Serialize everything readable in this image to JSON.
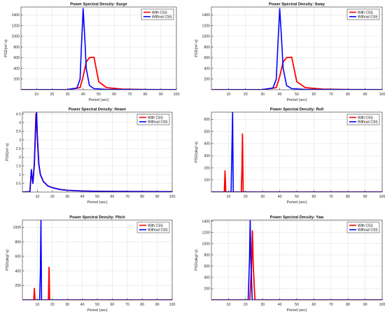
{
  "chart_data": [
    {
      "type": "line",
      "title": "Power Spectral Density: Surge",
      "xlabel": "Period (sec)",
      "ylabel": "PSD(m²·s)",
      "xlim": [
        0,
        100
      ],
      "ylim": [
        0,
        1550
      ],
      "xticks": [
        10,
        20,
        30,
        40,
        50,
        60,
        70,
        80,
        90,
        100
      ],
      "yticks": [
        200,
        400,
        600,
        800,
        1000,
        1200,
        1400
      ],
      "ytick_labels": [
        "200",
        "400",
        "600",
        "800",
        "1000",
        "1200",
        "1400"
      ],
      "grid": true,
      "legend": "top-right",
      "series": [
        {
          "name": "With CSS",
          "color": "#ff0000",
          "x": [
            0,
            30,
            38,
            40,
            42,
            44,
            47,
            50,
            55,
            65,
            80,
            100
          ],
          "y": [
            0,
            2,
            40,
            250,
            520,
            600,
            610,
            150,
            40,
            10,
            3,
            1
          ]
        },
        {
          "name": "Without CSS",
          "color": "#0000ff",
          "x": [
            0,
            30,
            36,
            38,
            39,
            40,
            41,
            42,
            44,
            47,
            55,
            100
          ],
          "y": [
            0,
            2,
            30,
            200,
            900,
            1520,
            1000,
            400,
            80,
            20,
            5,
            1
          ]
        }
      ]
    },
    {
      "type": "line",
      "title": "Power Spectral Density: Sway",
      "xlabel": "Period (sec)",
      "ylabel": "PSD(m²·s)",
      "xlim": [
        0,
        100
      ],
      "ylim": [
        0,
        1550
      ],
      "xticks": [
        10,
        20,
        30,
        40,
        50,
        60,
        70,
        80,
        90,
        100
      ],
      "yticks": [
        200,
        400,
        600,
        800,
        1000,
        1200,
        1400
      ],
      "ytick_labels": [
        "200",
        "400",
        "600",
        "800",
        "1000",
        "1200",
        "1400"
      ],
      "grid": true,
      "legend": "top-right",
      "series": [
        {
          "name": "With CSS",
          "color": "#ff0000",
          "x": [
            0,
            30,
            38,
            40,
            42,
            44,
            47,
            50,
            55,
            65,
            80,
            100
          ],
          "y": [
            0,
            2,
            40,
            250,
            520,
            600,
            610,
            150,
            40,
            10,
            3,
            1
          ]
        },
        {
          "name": "Without CSS",
          "color": "#0000ff",
          "x": [
            0,
            30,
            36,
            38,
            39,
            40,
            41,
            42,
            44,
            47,
            55,
            100
          ],
          "y": [
            0,
            2,
            30,
            200,
            900,
            1520,
            1000,
            400,
            80,
            20,
            5,
            1
          ]
        }
      ]
    },
    {
      "type": "line",
      "title": "Power Spectral Density: Heave",
      "xlabel": "Period (sec)",
      "ylabel": "PSD(m²·s)",
      "xlim": [
        0,
        100
      ],
      "ylim": [
        0,
        4.6
      ],
      "xticks": [
        10,
        20,
        30,
        40,
        50,
        60,
        70,
        80,
        90,
        100
      ],
      "yticks": [
        0.5,
        1,
        1.5,
        2,
        2.5,
        3,
        3.5,
        4,
        4.5
      ],
      "ytick_labels": [
        "0.5",
        "1",
        "1.5",
        "2",
        "2.5",
        "3",
        "3.5",
        "4",
        "4.5"
      ],
      "grid": true,
      "legend": "top-right",
      "series": [
        {
          "name": "With CSS",
          "color": "#ff0000",
          "x": [
            0,
            5,
            6,
            7,
            8,
            9,
            9.5,
            10,
            11,
            12,
            14,
            17,
            20,
            25,
            30,
            40,
            50,
            100
          ],
          "y": [
            0,
            0.02,
            1.2,
            0.5,
            1.6,
            4.5,
            4.2,
            3.0,
            1.6,
            1.0,
            0.6,
            0.35,
            0.25,
            0.15,
            0.1,
            0.06,
            0.04,
            0.02
          ]
        },
        {
          "name": "Without CSS",
          "color": "#0000ff",
          "x": [
            0,
            5,
            6,
            7,
            8,
            9,
            9.5,
            10,
            11,
            12,
            14,
            17,
            20,
            25,
            30,
            40,
            50,
            100
          ],
          "y": [
            0,
            0.02,
            1.3,
            0.5,
            1.7,
            4.0,
            4.6,
            3.2,
            1.6,
            1.0,
            0.6,
            0.35,
            0.25,
            0.15,
            0.1,
            0.06,
            0.04,
            0.02
          ]
        }
      ]
    },
    {
      "type": "line",
      "title": "Power Spectral Density: Roll",
      "xlabel": "Period (sec)",
      "ylabel": "PSD(deg²·s)",
      "xlim": [
        0,
        100
      ],
      "ylim": [
        0,
        660
      ],
      "xticks": [
        10,
        20,
        30,
        40,
        50,
        60,
        70,
        80,
        90,
        100
      ],
      "yticks": [
        100,
        200,
        300,
        400,
        500,
        600
      ],
      "ytick_labels": [
        "100",
        "200",
        "300",
        "400",
        "500",
        "600"
      ],
      "grid": true,
      "legend": "top-right",
      "series": [
        {
          "name": "With CSS",
          "color": "#ff0000",
          "x": [
            0,
            7.6,
            8,
            8.4,
            17.5,
            17.9,
            18.2,
            18.6,
            100
          ],
          "y": [
            0,
            0,
            175,
            0,
            0,
            200,
            480,
            0,
            0
          ]
        },
        {
          "name": "Without CSS",
          "color": "#0000ff",
          "x": [
            0,
            11.5,
            12,
            12.4,
            12.8,
            100
          ],
          "y": [
            0,
            0,
            350,
            660,
            0,
            0
          ]
        }
      ]
    },
    {
      "type": "line",
      "title": "Power Spectral Density: Pitch",
      "xlabel": "Period (sec)",
      "ylabel": "PSD(deg²·s)",
      "xlim": [
        0,
        100
      ],
      "ylim": [
        0,
        1100
      ],
      "xticks": [
        10,
        20,
        30,
        40,
        50,
        60,
        70,
        80,
        90,
        100
      ],
      "yticks": [
        200,
        400,
        600,
        800,
        1000
      ],
      "ytick_labels": [
        "200",
        "400",
        "600",
        "800",
        "1000"
      ],
      "grid": true,
      "legend": "top-right",
      "series": [
        {
          "name": "With CSS",
          "color": "#ff0000",
          "x": [
            0,
            7.6,
            8,
            8.4,
            17.4,
            17.8,
            18.2,
            100
          ],
          "y": [
            0,
            0,
            160,
            0,
            0,
            450,
            0,
            0
          ]
        },
        {
          "name": "Without CSS",
          "color": "#0000ff",
          "x": [
            0,
            11.5,
            12,
            12.4,
            12.8,
            100
          ],
          "y": [
            0,
            0,
            400,
            1100,
            0,
            0
          ]
        }
      ]
    },
    {
      "type": "line",
      "title": "Power Spectral Density: Yaw",
      "xlabel": "Period (sec)",
      "ylabel": "PSD(deg²·s)",
      "xlim": [
        0,
        100
      ],
      "ylim": [
        0,
        1420
      ],
      "xticks": [
        10,
        20,
        30,
        40,
        50,
        60,
        70,
        80,
        90,
        100
      ],
      "yticks": [
        200,
        400,
        600,
        800,
        1000,
        1200,
        1400
      ],
      "ytick_labels": [
        "200",
        "400",
        "600",
        "800",
        "1000",
        "1200",
        "1400"
      ],
      "grid": true,
      "legend": "top-right",
      "series": [
        {
          "name": "With CSS",
          "color": "#ff0000",
          "x": [
            0,
            22.5,
            23.5,
            24,
            24.5,
            25.5,
            100
          ],
          "y": [
            0,
            0,
            600,
            1230,
            600,
            0,
            0
          ]
        },
        {
          "name": "Without CSS",
          "color": "#0000ff",
          "x": [
            0,
            21.5,
            22.3,
            22.7,
            23.1,
            23.9,
            100
          ],
          "y": [
            0,
            0,
            700,
            1420,
            700,
            0,
            0
          ]
        }
      ]
    }
  ]
}
